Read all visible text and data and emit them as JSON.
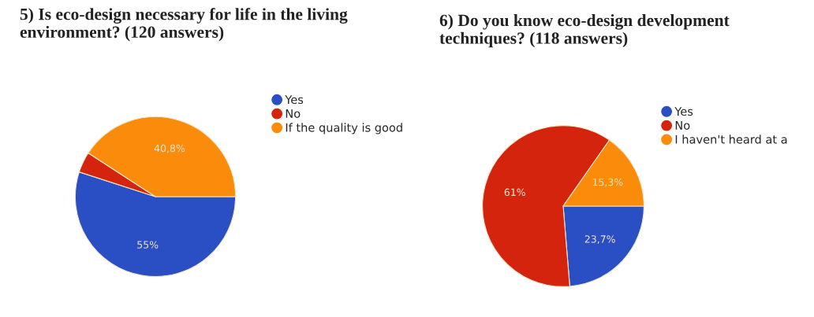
{
  "chart_data": [
    {
      "type": "pie",
      "title": "5) Is eco-design necessary for life in the living environment? (120 answers)",
      "categories": [
        "Yes",
        "No",
        "If the quality is good"
      ],
      "values": [
        55,
        4.2,
        40.8
      ],
      "colors": [
        "#2a4fc4",
        "#d4240e",
        "#fb8b0a"
      ],
      "value_labels": [
        "55%",
        null,
        "40,8%"
      ],
      "legend": "right"
    },
    {
      "type": "pie",
      "title": "6) Do you know eco-design development techniques? (118 answers)",
      "categories": [
        "Yes",
        "No",
        "I haven't heard at a"
      ],
      "values": [
        23.7,
        61,
        15.3
      ],
      "colors": [
        "#2a4fc4",
        "#d4240e",
        "#fb8b0a"
      ],
      "value_labels": [
        "23,7%",
        "61%",
        "15,3%"
      ],
      "legend": "right"
    }
  ]
}
